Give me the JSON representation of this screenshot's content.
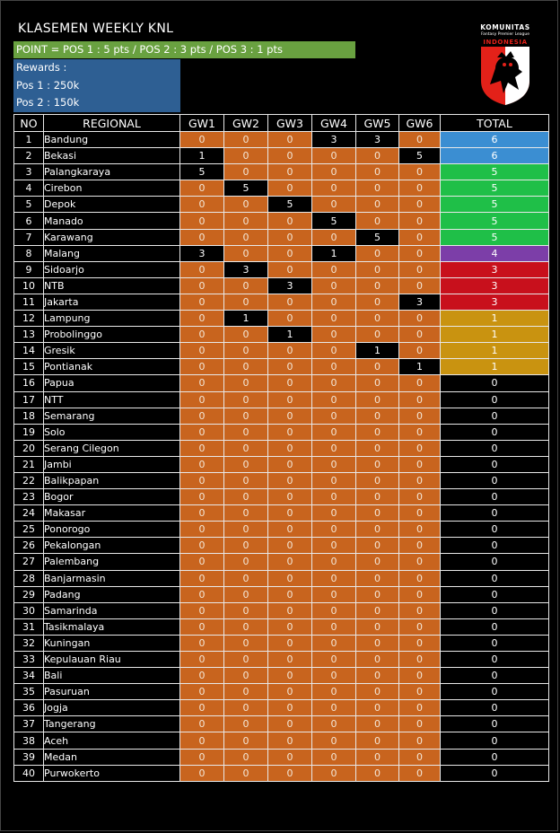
{
  "title": "KLASEMEN WEEKLY KNL",
  "points_rule": "POINT = POS 1 : 5 pts / POS 2 : 3 pts / POS 3 : 1 pts",
  "rewards": {
    "heading": "Rewards :",
    "items": [
      "Pos 1 : 250k",
      "Pos 2 : 150k"
    ]
  },
  "logo": {
    "line1": "KOMUNITAS",
    "line2": "Fantasy Premier League",
    "line3": "INDONESIA",
    "colors": {
      "shield": "#e32119",
      "crest": "#000000"
    }
  },
  "colors": {
    "gw_cell": "#c8641e",
    "total_6": "#3b8ed2",
    "total_5": "#1fbf48",
    "total_4": "#7c3ea8",
    "total_3": "#c8101c",
    "total_1": "#c99310"
  },
  "table": {
    "headers": [
      "NO",
      "REGIONAL",
      "GW1",
      "GW2",
      "GW3",
      "GW4",
      "GW5",
      "GW6",
      "TOTAL"
    ],
    "rows": [
      {
        "no": "1",
        "regional": "Bandung",
        "gw": [
          "0",
          "0",
          "0",
          "3",
          "3",
          "0"
        ],
        "total": "6"
      },
      {
        "no": "2",
        "regional": "Bekasi",
        "gw": [
          "1",
          "0",
          "0",
          "0",
          "0",
          "5"
        ],
        "total": "6"
      },
      {
        "no": "3",
        "regional": "Palangkaraya",
        "gw": [
          "5",
          "0",
          "0",
          "0",
          "0",
          "0"
        ],
        "total": "5"
      },
      {
        "no": "4",
        "regional": "Cirebon",
        "gw": [
          "0",
          "5",
          "0",
          "0",
          "0",
          "0"
        ],
        "total": "5"
      },
      {
        "no": "5",
        "regional": "Depok",
        "gw": [
          "0",
          "0",
          "5",
          "0",
          "0",
          "0"
        ],
        "total": "5"
      },
      {
        "no": "6",
        "regional": "Manado",
        "gw": [
          "0",
          "0",
          "0",
          "5",
          "0",
          "0"
        ],
        "total": "5"
      },
      {
        "no": "7",
        "regional": "Karawang",
        "gw": [
          "0",
          "0",
          "0",
          "0",
          "5",
          "0"
        ],
        "total": "5"
      },
      {
        "no": "8",
        "regional": "Malang",
        "gw": [
          "3",
          "0",
          "0",
          "1",
          "0",
          "0"
        ],
        "total": "4"
      },
      {
        "no": "9",
        "regional": "Sidoarjo",
        "gw": [
          "0",
          "3",
          "0",
          "0",
          "0",
          "0"
        ],
        "total": "3"
      },
      {
        "no": "10",
        "regional": "NTB",
        "gw": [
          "0",
          "0",
          "3",
          "0",
          "0",
          "0"
        ],
        "total": "3"
      },
      {
        "no": "11",
        "regional": "Jakarta",
        "gw": [
          "0",
          "0",
          "0",
          "0",
          "0",
          "3"
        ],
        "total": "3"
      },
      {
        "no": "12",
        "regional": "Lampung",
        "gw": [
          "0",
          "1",
          "0",
          "0",
          "0",
          "0"
        ],
        "total": "1"
      },
      {
        "no": "13",
        "regional": "Probolinggo",
        "gw": [
          "0",
          "0",
          "1",
          "0",
          "0",
          "0"
        ],
        "total": "1"
      },
      {
        "no": "14",
        "regional": "Gresik",
        "gw": [
          "0",
          "0",
          "0",
          "0",
          "1",
          "0"
        ],
        "total": "1"
      },
      {
        "no": "15",
        "regional": "Pontianak",
        "gw": [
          "0",
          "0",
          "0",
          "0",
          "0",
          "1"
        ],
        "total": "1"
      },
      {
        "no": "16",
        "regional": "Papua",
        "gw": [
          "0",
          "0",
          "0",
          "0",
          "0",
          "0"
        ],
        "total": "0"
      },
      {
        "no": "17",
        "regional": "NTT",
        "gw": [
          "0",
          "0",
          "0",
          "0",
          "0",
          "0"
        ],
        "total": "0"
      },
      {
        "no": "18",
        "regional": "Semarang",
        "gw": [
          "0",
          "0",
          "0",
          "0",
          "0",
          "0"
        ],
        "total": "0"
      },
      {
        "no": "19",
        "regional": "Solo",
        "gw": [
          "0",
          "0",
          "0",
          "0",
          "0",
          "0"
        ],
        "total": "0"
      },
      {
        "no": "20",
        "regional": "Serang Cilegon",
        "gw": [
          "0",
          "0",
          "0",
          "0",
          "0",
          "0"
        ],
        "total": "0"
      },
      {
        "no": "21",
        "regional": "Jambi",
        "gw": [
          "0",
          "0",
          "0",
          "0",
          "0",
          "0"
        ],
        "total": "0"
      },
      {
        "no": "22",
        "regional": "Balikpapan",
        "gw": [
          "0",
          "0",
          "0",
          "0",
          "0",
          "0"
        ],
        "total": "0"
      },
      {
        "no": "23",
        "regional": "Bogor",
        "gw": [
          "0",
          "0",
          "0",
          "0",
          "0",
          "0"
        ],
        "total": "0"
      },
      {
        "no": "24",
        "regional": "Makasar",
        "gw": [
          "0",
          "0",
          "0",
          "0",
          "0",
          "0"
        ],
        "total": "0"
      },
      {
        "no": "25",
        "regional": "Ponorogo",
        "gw": [
          "0",
          "0",
          "0",
          "0",
          "0",
          "0"
        ],
        "total": "0"
      },
      {
        "no": "26",
        "regional": "Pekalongan",
        "gw": [
          "0",
          "0",
          "0",
          "0",
          "0",
          "0"
        ],
        "total": "0"
      },
      {
        "no": "27",
        "regional": "Palembang",
        "gw": [
          "0",
          "0",
          "0",
          "0",
          "0",
          "0"
        ],
        "total": "0"
      },
      {
        "no": "28",
        "regional": "Banjarmasin",
        "gw": [
          "0",
          "0",
          "0",
          "0",
          "0",
          "0"
        ],
        "total": "0"
      },
      {
        "no": "29",
        "regional": "Padang",
        "gw": [
          "0",
          "0",
          "0",
          "0",
          "0",
          "0"
        ],
        "total": "0"
      },
      {
        "no": "30",
        "regional": "Samarinda",
        "gw": [
          "0",
          "0",
          "0",
          "0",
          "0",
          "0"
        ],
        "total": "0"
      },
      {
        "no": "31",
        "regional": "Tasikmalaya",
        "gw": [
          "0",
          "0",
          "0",
          "0",
          "0",
          "0"
        ],
        "total": "0"
      },
      {
        "no": "32",
        "regional": "Kuningan",
        "gw": [
          "0",
          "0",
          "0",
          "0",
          "0",
          "0"
        ],
        "total": "0"
      },
      {
        "no": "33",
        "regional": "Kepulauan Riau",
        "gw": [
          "0",
          "0",
          "0",
          "0",
          "0",
          "0"
        ],
        "total": "0"
      },
      {
        "no": "34",
        "regional": "Bali",
        "gw": [
          "0",
          "0",
          "0",
          "0",
          "0",
          "0"
        ],
        "total": "0"
      },
      {
        "no": "35",
        "regional": "Pasuruan",
        "gw": [
          "0",
          "0",
          "0",
          "0",
          "0",
          "0"
        ],
        "total": "0"
      },
      {
        "no": "36",
        "regional": "Jogja",
        "gw": [
          "0",
          "0",
          "0",
          "0",
          "0",
          "0"
        ],
        "total": "0"
      },
      {
        "no": "37",
        "regional": "Tangerang",
        "gw": [
          "0",
          "0",
          "0",
          "0",
          "0",
          "0"
        ],
        "total": "0"
      },
      {
        "no": "38",
        "regional": "Aceh",
        "gw": [
          "0",
          "0",
          "0",
          "0",
          "0",
          "0"
        ],
        "total": "0"
      },
      {
        "no": "39",
        "regional": "Medan",
        "gw": [
          "0",
          "0",
          "0",
          "0",
          "0",
          "0"
        ],
        "total": "0"
      },
      {
        "no": "40",
        "regional": "Purwokerto",
        "gw": [
          "0",
          "0",
          "0",
          "0",
          "0",
          "0"
        ],
        "total": "0"
      }
    ]
  }
}
